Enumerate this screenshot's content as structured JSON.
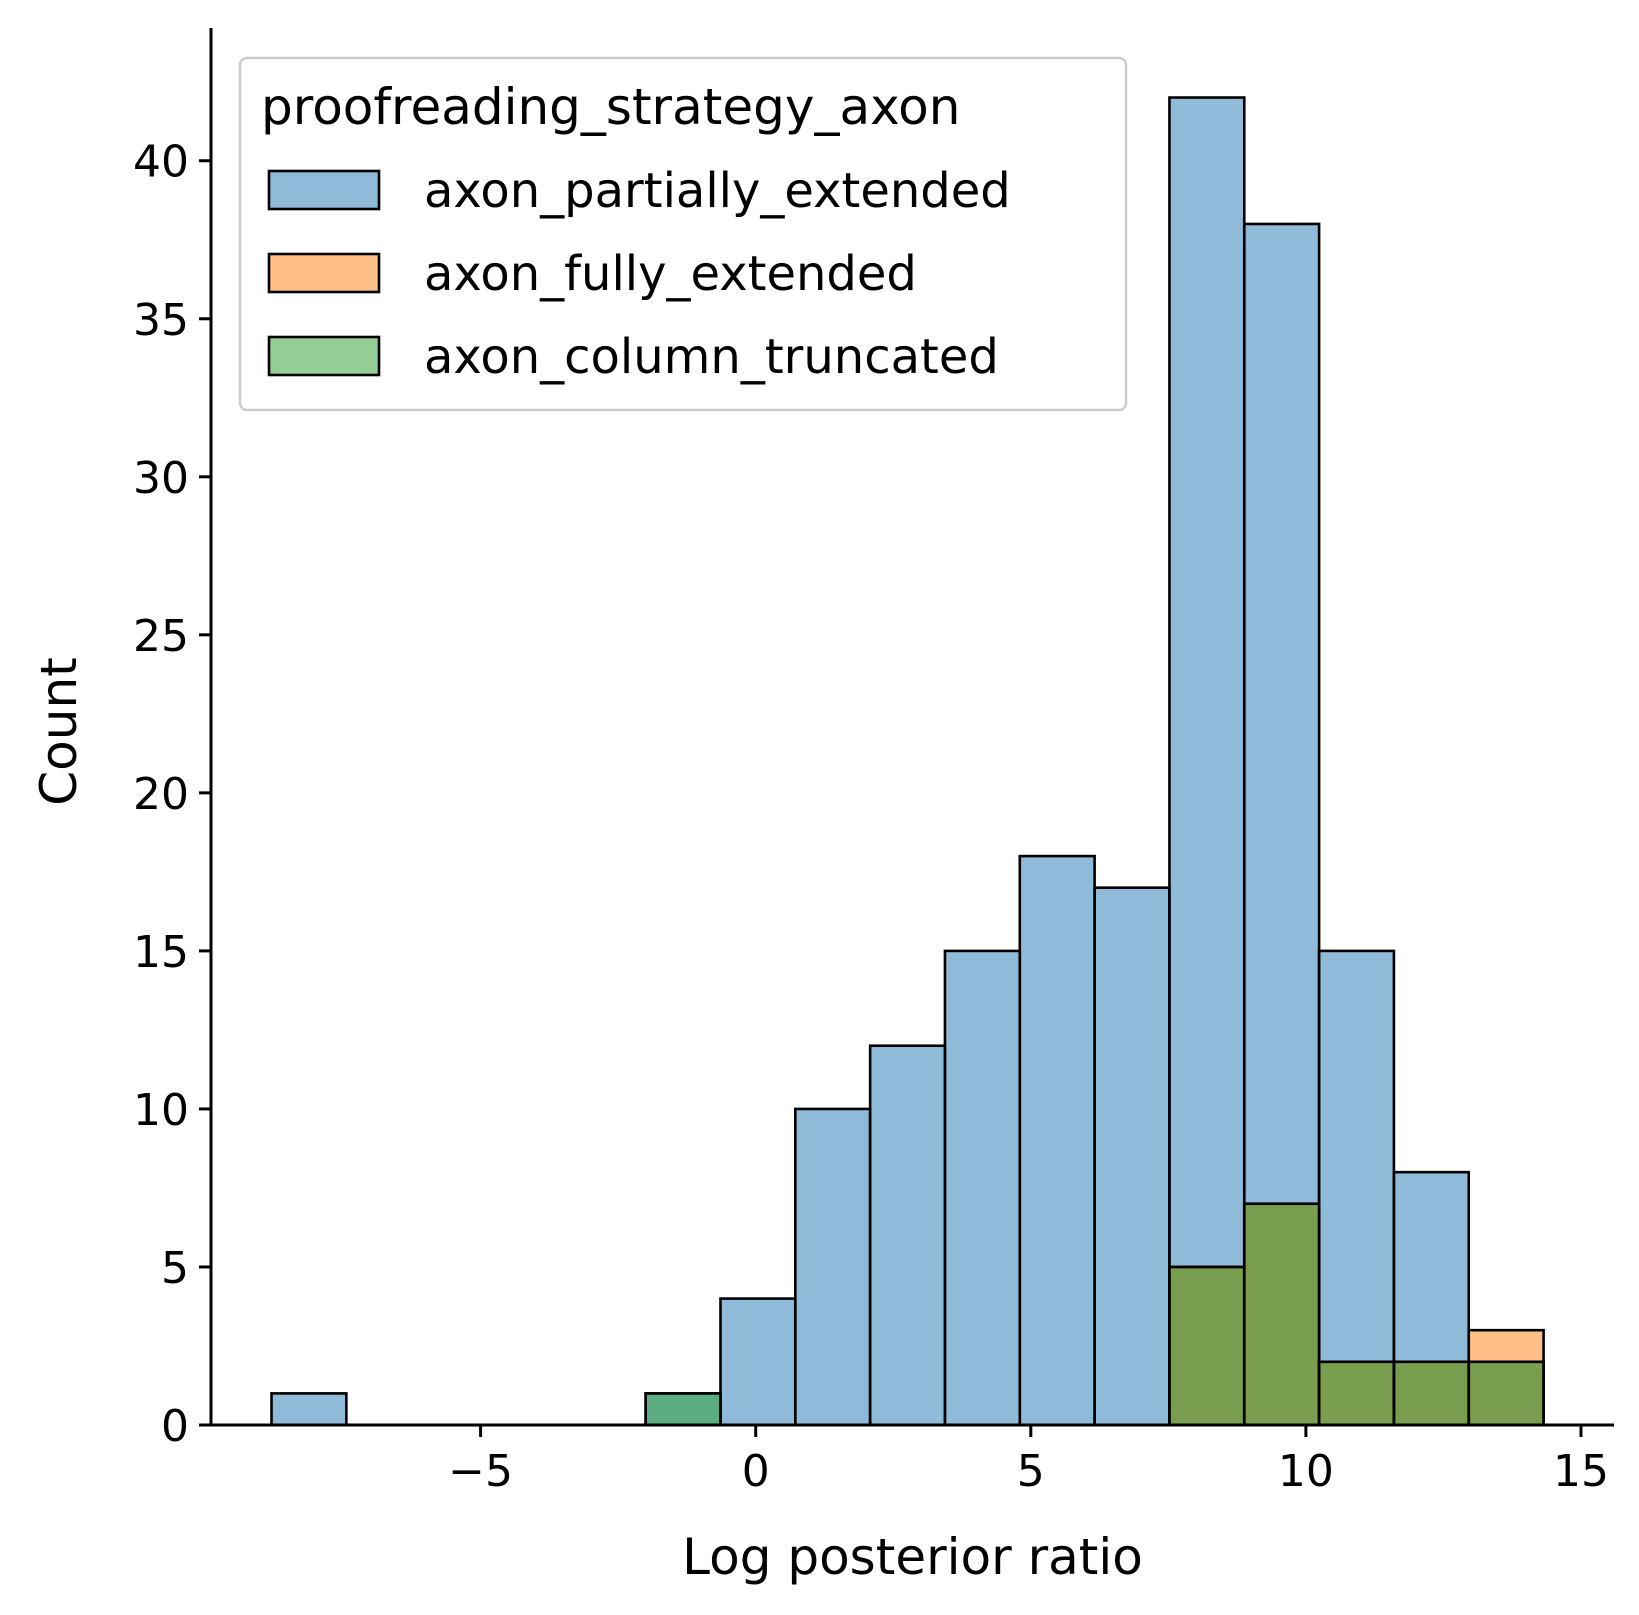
{
  "chart_data": {
    "type": "bar",
    "subtype": "histogram-overlay",
    "title": "",
    "xlabel": "Log posterior ratio",
    "ylabel": "Count",
    "xlim": [
      -9.9,
      15.6
    ],
    "ylim": [
      0,
      44.2
    ],
    "xticks": [
      -5,
      0,
      5,
      10,
      15
    ],
    "xtick_labels": [
      "−5",
      "0",
      "5",
      "10",
      "15"
    ],
    "yticks": [
      0,
      5,
      10,
      15,
      20,
      25,
      30,
      35,
      40
    ],
    "ytick_labels": [
      "0",
      "5",
      "10",
      "15",
      "20",
      "25",
      "30",
      "35",
      "40"
    ],
    "grid": false,
    "legend": {
      "title": "proofreading_strategy_axon",
      "placement": "top-left"
    },
    "bin_edges": [
      -8.8,
      -7.44,
      -6.08,
      -4.72,
      -3.36,
      -2.0,
      -0.64,
      0.72,
      2.08,
      3.44,
      4.8,
      6.16,
      7.52,
      8.88,
      10.24,
      11.6,
      12.96,
      14.32
    ],
    "series": [
      {
        "name": "axon_partially_extended",
        "color": "#1f77b4",
        "counts": [
          1,
          0,
          0,
          0,
          0,
          1,
          4,
          10,
          12,
          15,
          18,
          17,
          42,
          38,
          15,
          8,
          2
        ]
      },
      {
        "name": "axon_fully_extended",
        "color": "#ff7f0e",
        "counts": [
          0,
          0,
          0,
          0,
          0,
          0,
          0,
          0,
          0,
          0,
          0,
          0,
          5,
          7,
          2,
          2,
          3
        ]
      },
      {
        "name": "axon_column_truncated",
        "color": "#2ca02c",
        "counts": [
          0,
          0,
          0,
          0,
          0,
          1,
          0,
          0,
          0,
          0,
          0,
          0,
          5,
          7,
          2,
          2,
          2
        ]
      }
    ]
  }
}
